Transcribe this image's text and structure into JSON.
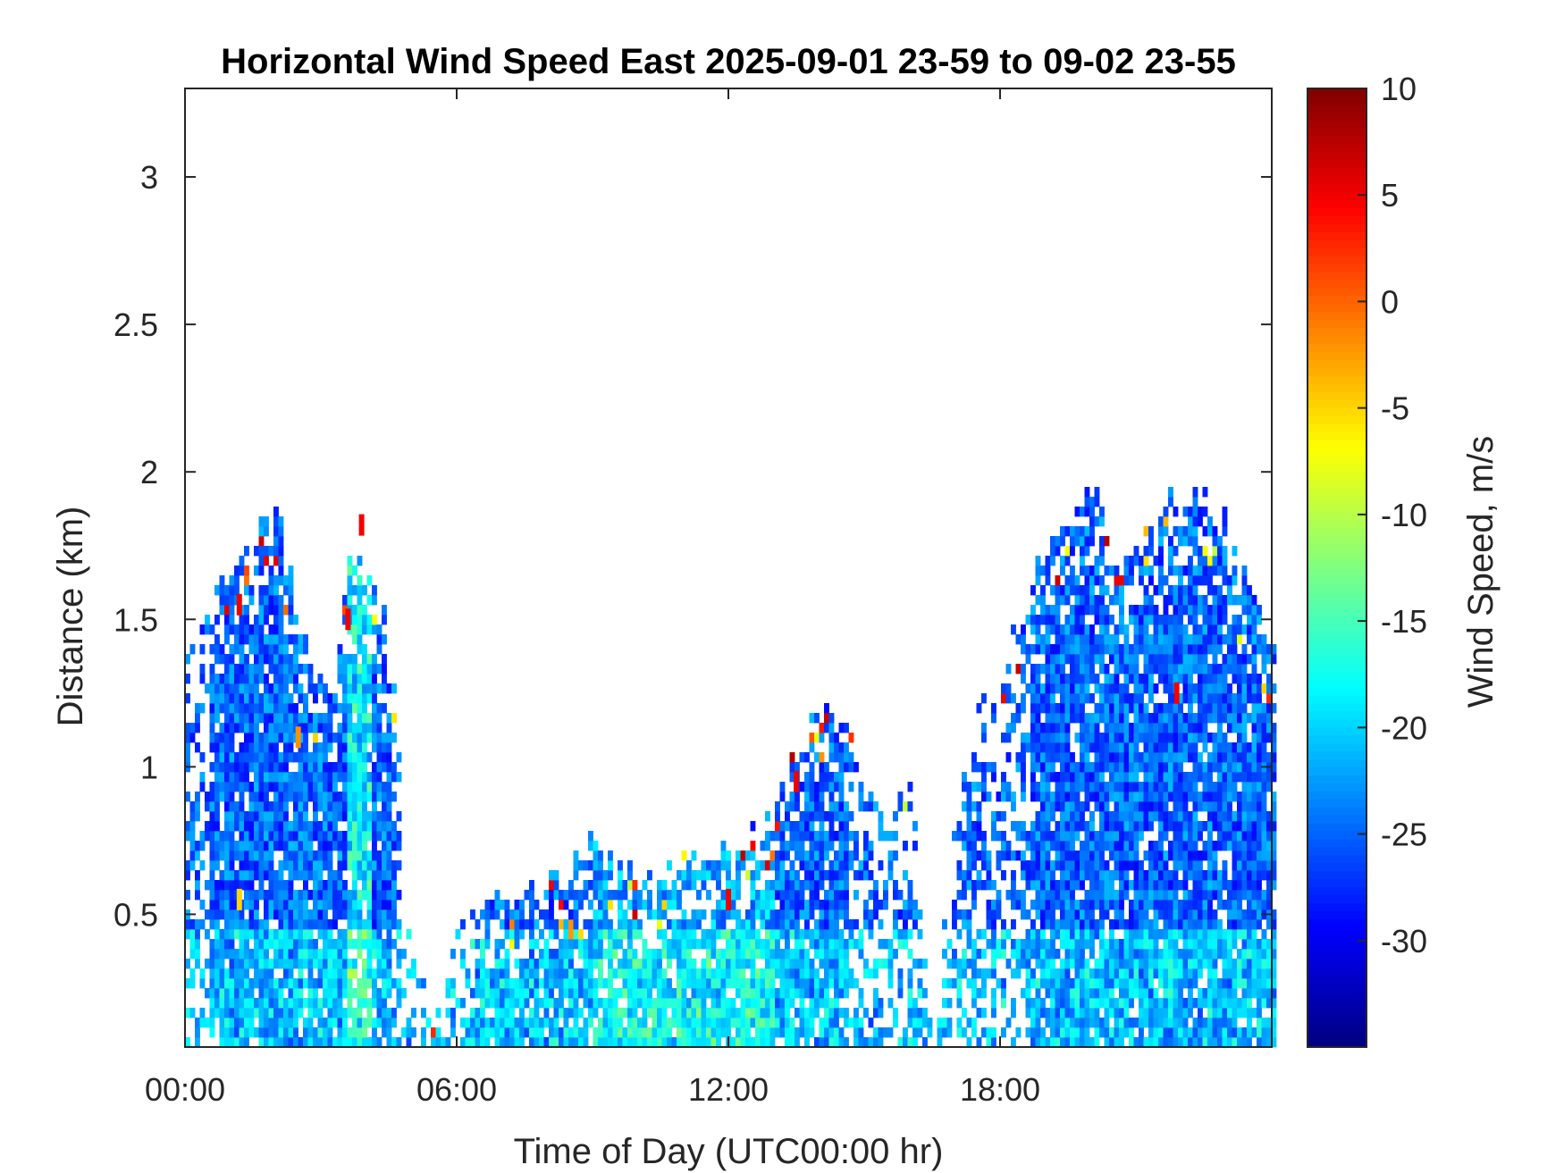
{
  "chart_data": {
    "type": "heatmap",
    "title": "Horizontal Wind Speed East 2025-09-01 23-59 to 09-02 23-55",
    "xlabel": "Time of Day (UTC00:00 hr)",
    "ylabel": "Distance (km)",
    "x_ticks": [
      "00:00",
      "06:00",
      "12:00",
      "18:00"
    ],
    "x_tick_values": [
      0,
      6,
      12,
      18
    ],
    "xlim": [
      0,
      24
    ],
    "y_ticks": [
      "0.5",
      "1",
      "1.5",
      "2",
      "2.5",
      "3"
    ],
    "y_tick_values": [
      0.5,
      1,
      1.5,
      2,
      2.5,
      3
    ],
    "ylim": [
      0.05,
      3.3
    ],
    "colorbar": {
      "label": "Wind Speed, m/s",
      "ticks": [
        "10",
        "5",
        "0",
        "-5",
        "-10",
        "-15",
        "-20",
        "-25",
        "-30"
      ],
      "tick_values": [
        10,
        5,
        0,
        -5,
        -10,
        -15,
        -20,
        -25,
        -30
      ],
      "range": [
        -35,
        10
      ],
      "colormap": "jet"
    },
    "grid": false,
    "coverage_top_km": [
      [
        0.0,
        1.38
      ],
      [
        0.3,
        1.45
      ],
      [
        0.5,
        1.58
      ],
      [
        0.8,
        1.62
      ],
      [
        1.0,
        1.68
      ],
      [
        1.3,
        1.75
      ],
      [
        1.6,
        1.82
      ],
      [
        2.0,
        1.9
      ],
      [
        2.4,
        1.55
      ],
      [
        2.8,
        1.3
      ],
      [
        3.2,
        1.25
      ],
      [
        3.6,
        1.8
      ],
      [
        4.0,
        1.65
      ],
      [
        4.4,
        1.45
      ],
      [
        4.7,
        1.2
      ],
      [
        4.8,
        0.45
      ],
      [
        5.5,
        0.28
      ],
      [
        6.0,
        0.45
      ],
      [
        6.5,
        0.55
      ],
      [
        7.0,
        0.55
      ],
      [
        8.0,
        0.62
      ],
      [
        8.5,
        0.68
      ],
      [
        9.0,
        0.75
      ],
      [
        9.5,
        0.65
      ],
      [
        10.0,
        0.62
      ],
      [
        10.5,
        0.62
      ],
      [
        11.0,
        0.68
      ],
      [
        11.5,
        0.7
      ],
      [
        12.0,
        0.72
      ],
      [
        12.5,
        0.75
      ],
      [
        13.0,
        0.85
      ],
      [
        13.5,
        1.05
      ],
      [
        14.0,
        1.22
      ],
      [
        14.5,
        1.15
      ],
      [
        15.0,
        1.0
      ],
      [
        15.5,
        0.85
      ],
      [
        16.0,
        0.9
      ],
      [
        16.5,
        0.0
      ],
      [
        17.0,
        1.05
      ],
      [
        17.5,
        1.3
      ],
      [
        18.0,
        1.25
      ],
      [
        18.5,
        1.6
      ],
      [
        19.0,
        1.75
      ],
      [
        19.5,
        1.85
      ],
      [
        20.0,
        2.0
      ],
      [
        20.5,
        1.7
      ],
      [
        21.0,
        1.75
      ],
      [
        21.5,
        1.9
      ],
      [
        22.0,
        1.95
      ],
      [
        22.5,
        1.9
      ],
      [
        23.0,
        1.8
      ],
      [
        23.5,
        1.55
      ],
      [
        24.0,
        1.45
      ]
    ],
    "typical_speed_m_s": -25,
    "notable_features": [
      {
        "x_hr": 12.0,
        "y_km": 0.55,
        "speed_m_s": 5
      },
      {
        "x_hr": 3.6,
        "y_km": 1.5,
        "speed_m_s": 5
      },
      {
        "x_hr": 3.9,
        "y_km": 1.82,
        "speed_m_s": 5
      },
      {
        "x_hr": 1.2,
        "y_km": 1.55,
        "speed_m_s": 5
      },
      {
        "x_hr": 2.5,
        "y_km": 1.1,
        "speed_m_s": -2
      },
      {
        "x_hr": 13.5,
        "y_km": 0.95,
        "speed_m_s": 5
      },
      {
        "x_hr": 21.9,
        "y_km": 1.25,
        "speed_m_s": 5
      },
      {
        "x_hr": 1.2,
        "y_km": 0.55,
        "speed_m_s": -5
      }
    ]
  }
}
